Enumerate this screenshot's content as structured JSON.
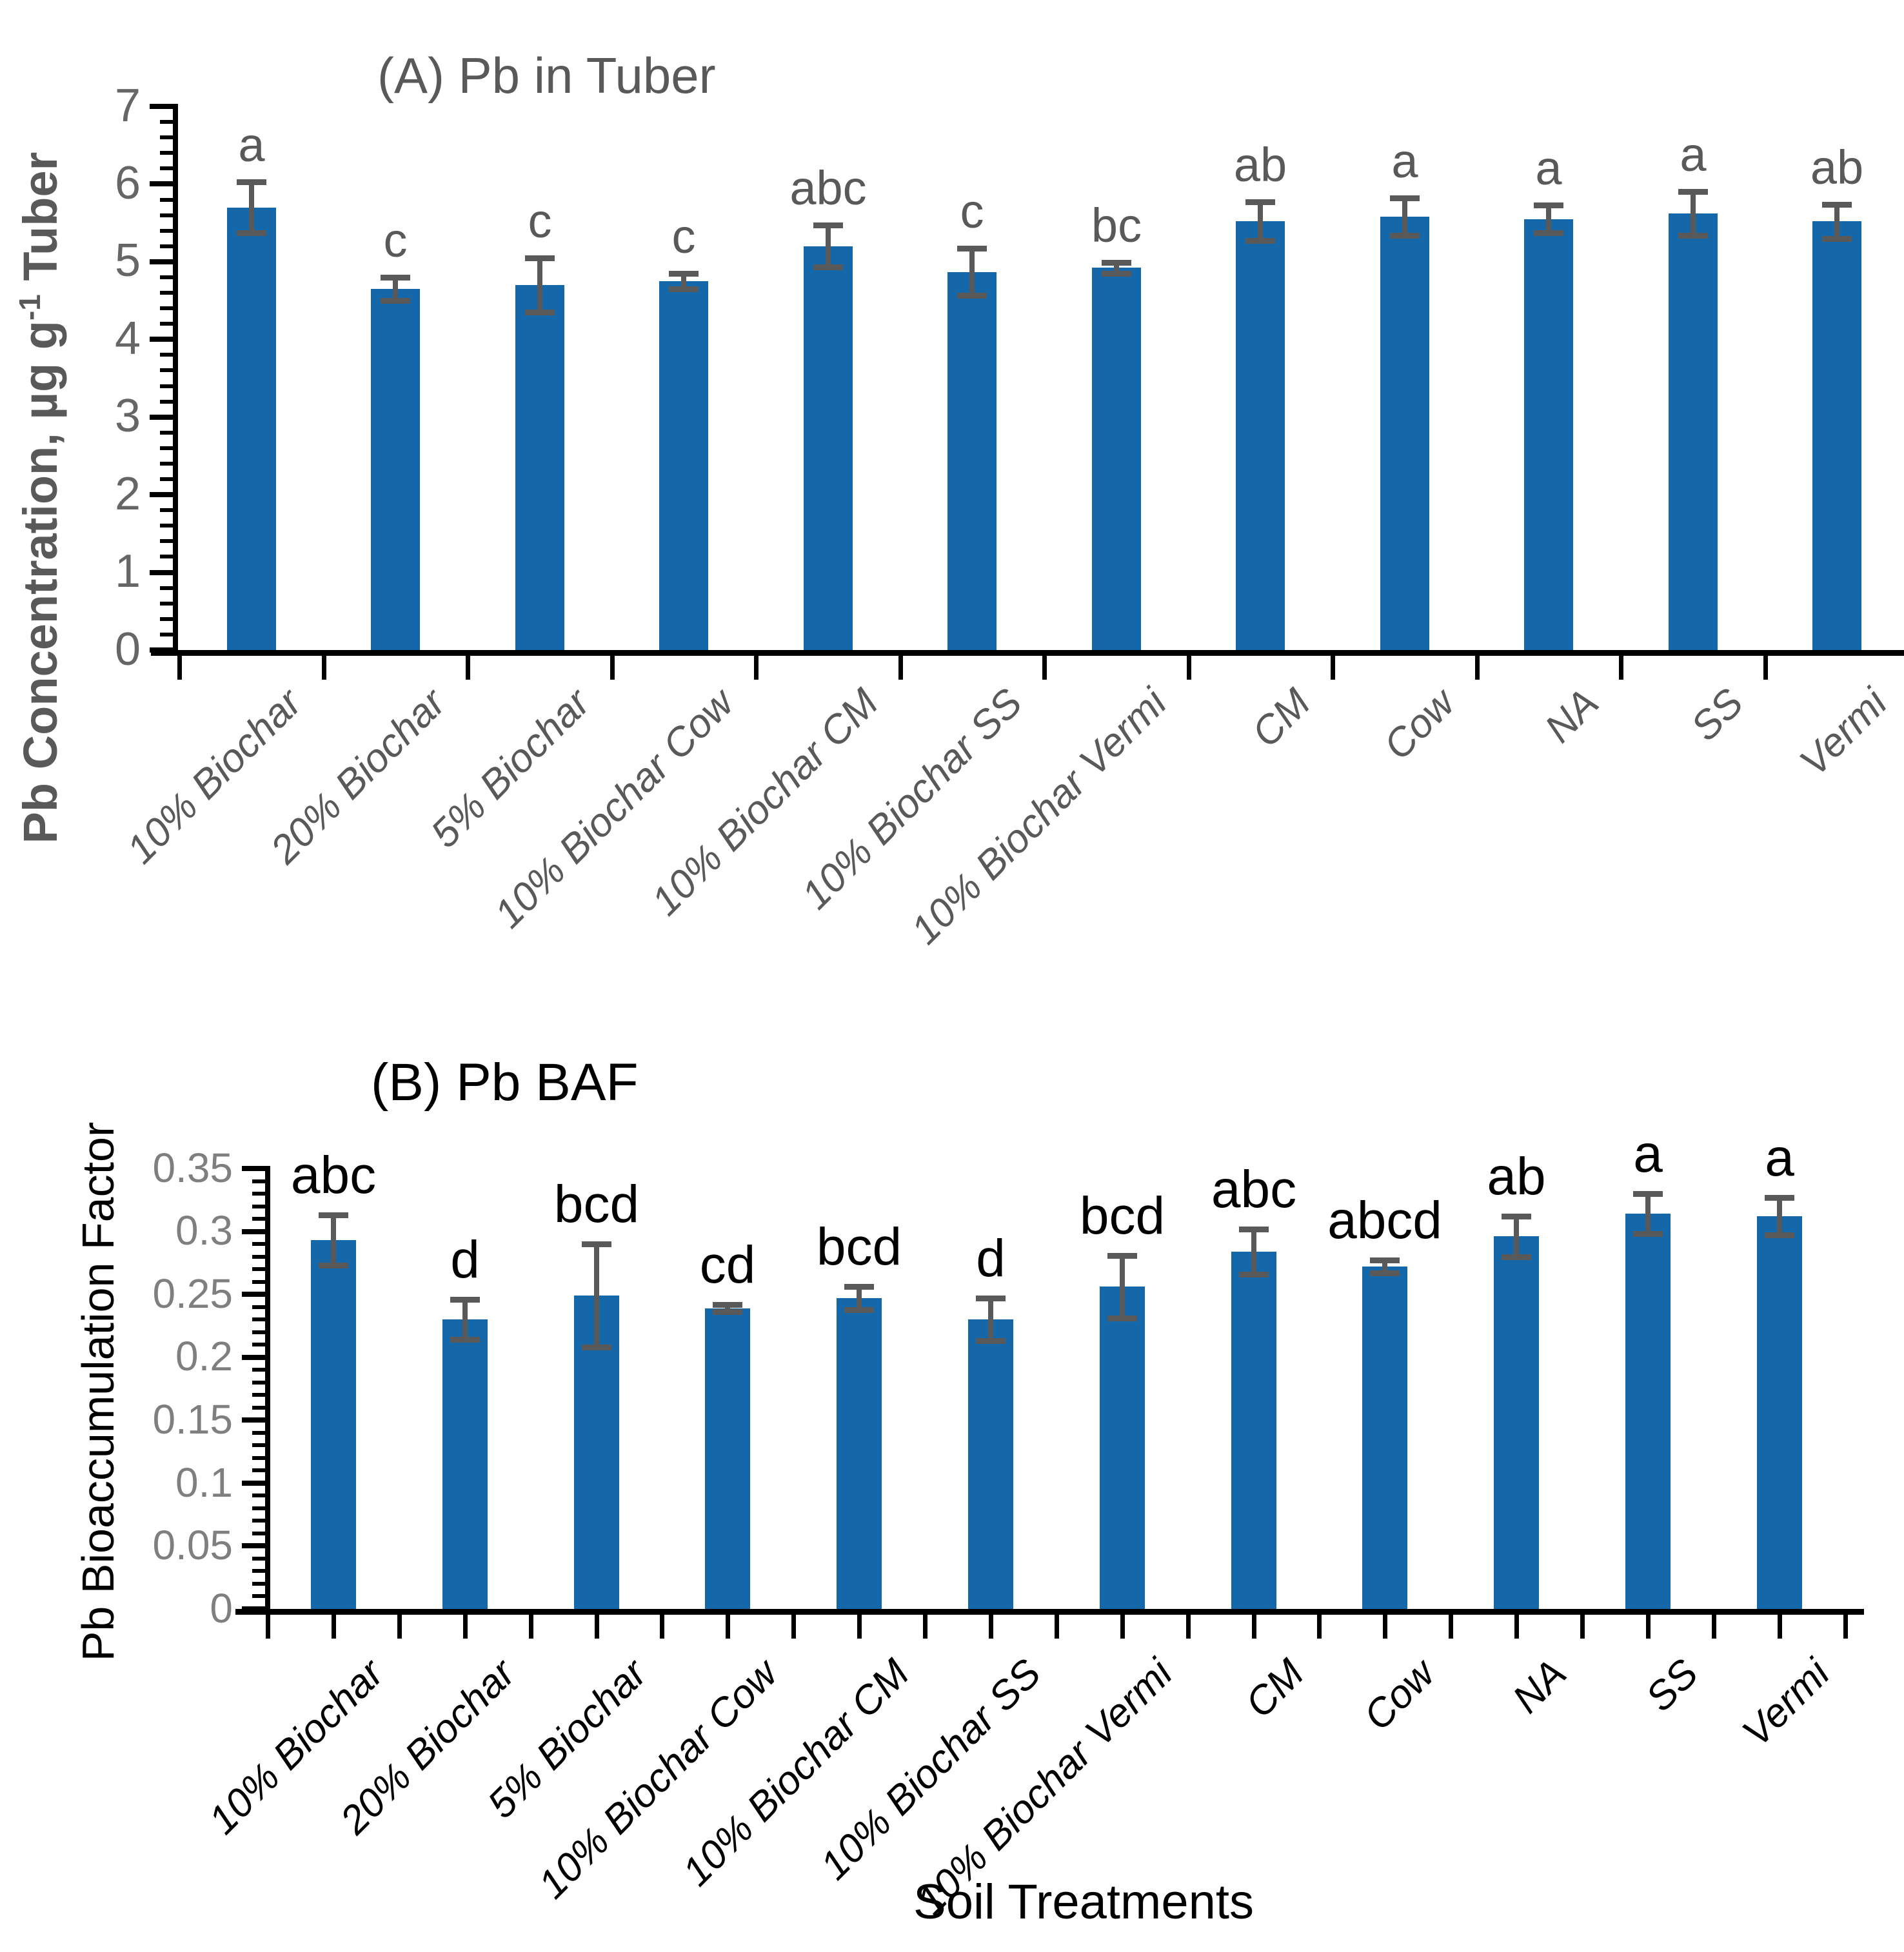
{
  "figure": {
    "background": "#ffffff"
  },
  "chart_data": [
    {
      "type": "bar",
      "panel": "A",
      "title": "(A) Pb in Tuber",
      "ylabel_parts": {
        "pre": "Pb Concentration, µg g",
        "sup": "-1",
        "post": " Tuber"
      },
      "xlabel": "",
      "ylim": [
        0,
        7
      ],
      "ytick_step": 1,
      "yminor_step": 0.2,
      "yticks": [
        "0",
        "1",
        "2",
        "3",
        "4",
        "5",
        "6",
        "7"
      ],
      "grid": false,
      "legend": "none",
      "categories": [
        "10% Biochar",
        "20% Biochar",
        "5% Biochar",
        "10% Biochar Cow",
        "10% Biochar CM",
        "10% Biochar SS",
        "10% Biochar Vermi",
        "CM",
        "Cow",
        "NA",
        "SS",
        "Vermi"
      ],
      "values": [
        5.7,
        4.65,
        4.7,
        4.75,
        5.2,
        4.87,
        4.92,
        5.52,
        5.58,
        5.55,
        5.62,
        5.52
      ],
      "errors": [
        0.33,
        0.15,
        0.35,
        0.1,
        0.27,
        0.3,
        0.07,
        0.25,
        0.24,
        0.18,
        0.28,
        0.22
      ],
      "letters": [
        "a",
        "c",
        "c",
        "c",
        "abc",
        "c",
        "bc",
        "ab",
        "a",
        "a",
        "a",
        "ab"
      ],
      "bar_color": "#1467A8",
      "error_color": "#595959",
      "letter_color": "#595959",
      "category_color": "#595959",
      "tick_label_color": "#666666",
      "title_color": "#595959",
      "ylabel_color": "#595959",
      "axis_color": "#000000"
    },
    {
      "type": "bar",
      "panel": "B",
      "title": "(B) Pb BAF",
      "ylabel": "Pb Bioaccumulation Factor",
      "xlabel": "Soil Treatments",
      "ylim": [
        0,
        0.35
      ],
      "ytick_step": 0.05,
      "yminor_step": 0.01,
      "yticks": [
        "0",
        "0.05",
        "0.1",
        "0.15",
        "0.2",
        "0.25",
        "0.3",
        "0.35"
      ],
      "grid": false,
      "legend": "none",
      "categories": [
        "10% Biochar",
        "20% Biochar",
        "5% Biochar",
        "10% Biochar Cow",
        "10% Biochar CM",
        "10% Biochar SS",
        "10% Biochar Vermi",
        "CM",
        "Cow",
        "NA",
        "SS",
        "Vermi"
      ],
      "values": [
        0.293,
        0.23,
        0.249,
        0.239,
        0.247,
        0.23,
        0.256,
        0.284,
        0.272,
        0.296,
        0.314,
        0.312
      ],
      "errors": [
        0.02,
        0.016,
        0.041,
        0.003,
        0.009,
        0.017,
        0.025,
        0.018,
        0.005,
        0.016,
        0.016,
        0.015
      ],
      "letters": [
        "abc",
        "d",
        "bcd",
        "cd",
        "bcd",
        "d",
        "bcd",
        "abc",
        "abcd",
        "ab",
        "a",
        "a"
      ],
      "bar_color": "#1467A8",
      "error_color": "#595959",
      "letter_color": "#000000",
      "category_color": "#000000",
      "tick_label_color": "#7f7f7f",
      "title_color": "#000000",
      "ylabel_color": "#000000",
      "axis_color": "#000000"
    }
  ]
}
